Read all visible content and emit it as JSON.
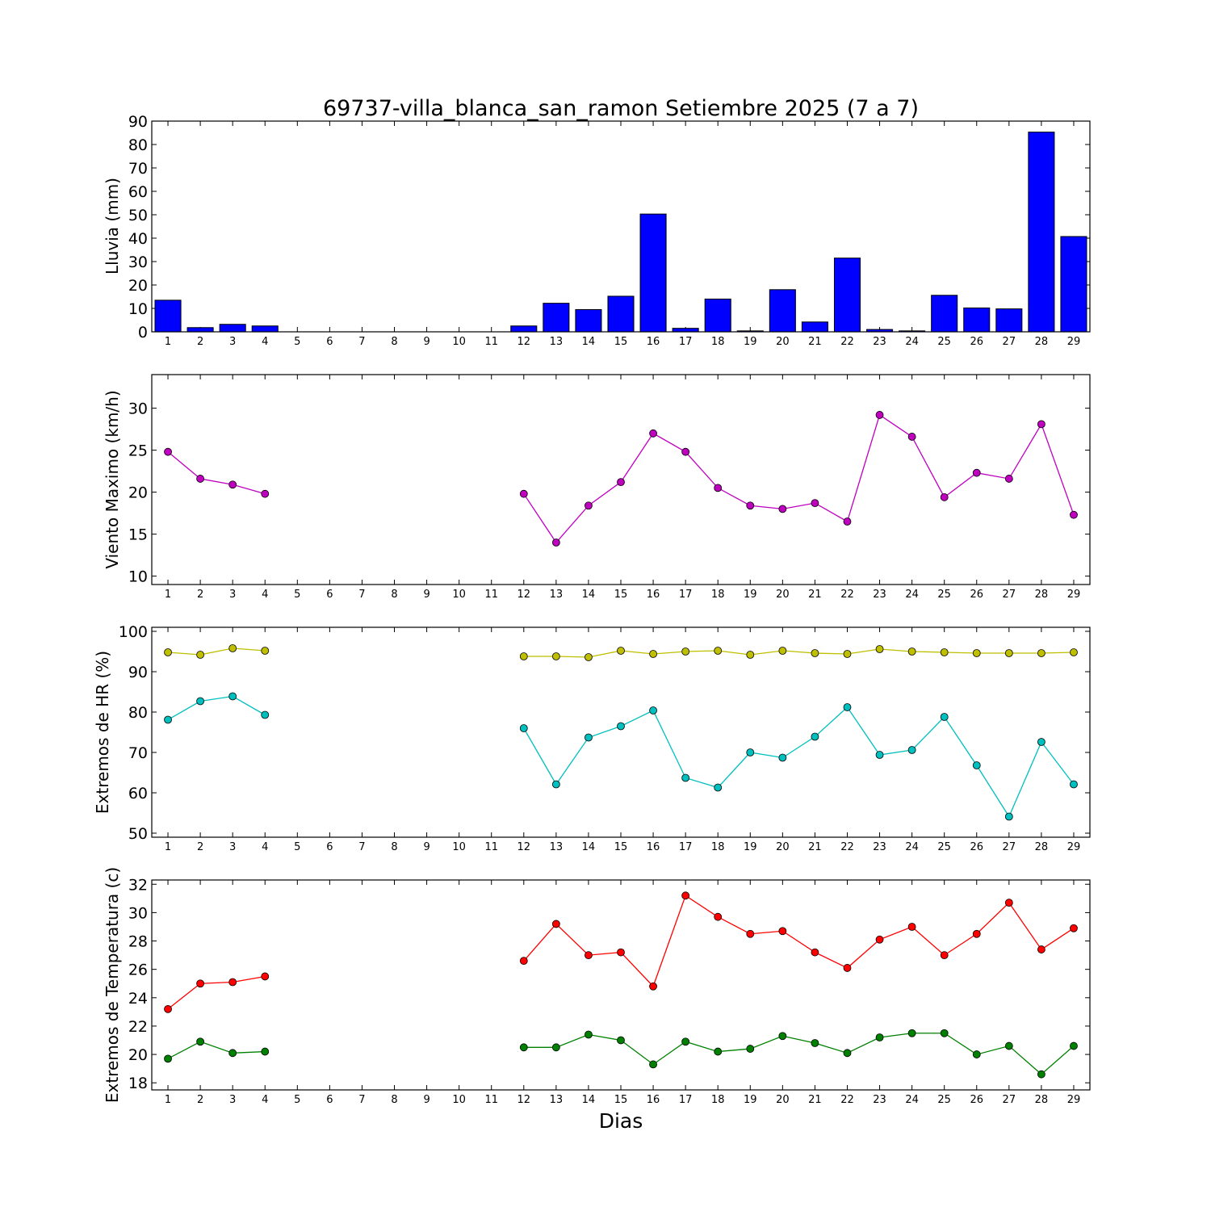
{
  "chart_data": [
    {
      "type": "bar",
      "title": "69737-villa_blanca_san_ramon Setiembre 2025  (7 a 7)",
      "ylabel": "Lluvia (mm)",
      "xlabel": "",
      "categories": [
        "1",
        "2",
        "3",
        "4",
        "5",
        "6",
        "7",
        "8",
        "9",
        "10",
        "11",
        "12",
        "13",
        "14",
        "15",
        "16",
        "17",
        "18",
        "19",
        "20",
        "21",
        "22",
        "23",
        "24",
        "25",
        "26",
        "27",
        "28",
        "29"
      ],
      "values": [
        13.5,
        1.8,
        3.2,
        2.5,
        0,
        0,
        0,
        0,
        0,
        0,
        0,
        2.5,
        12.2,
        9.5,
        15.2,
        50.3,
        1.5,
        14.0,
        0.4,
        18.0,
        4.2,
        31.5,
        1.0,
        0.4,
        15.6,
        10.2,
        9.8,
        85.3,
        40.7
      ],
      "ylim": [
        0,
        90
      ],
      "yticks": [
        "0",
        "10",
        "20",
        "30",
        "40",
        "50",
        "60",
        "70",
        "80",
        "90"
      ],
      "colors": {
        "bar": "#0000ff"
      }
    },
    {
      "type": "line",
      "title": "",
      "ylabel": "Viento Maximo (km/h)",
      "xlabel": "",
      "x": [
        1,
        2,
        3,
        4,
        5,
        6,
        7,
        8,
        9,
        10,
        11,
        12,
        13,
        14,
        15,
        16,
        17,
        18,
        19,
        20,
        21,
        22,
        23,
        24,
        25,
        26,
        27,
        28,
        29
      ],
      "xticks": [
        "1",
        "2",
        "3",
        "4",
        "5",
        "6",
        "7",
        "8",
        "9",
        "10",
        "11",
        "12",
        "13",
        "14",
        "15",
        "16",
        "17",
        "18",
        "19",
        "20",
        "21",
        "22",
        "23",
        "24",
        "25",
        "26",
        "27",
        "28",
        "29"
      ],
      "series": [
        {
          "color": "#bf00bf",
          "values": [
            24.8,
            21.6,
            20.9,
            19.8,
            null,
            null,
            null,
            null,
            null,
            null,
            null,
            19.8,
            14.0,
            18.4,
            21.2,
            27.0,
            24.8,
            20.5,
            18.4,
            18.0,
            18.7,
            16.5,
            29.2,
            26.6,
            19.4,
            22.3,
            21.6,
            28.1,
            17.3
          ]
        }
      ],
      "ylim": [
        9,
        34
      ],
      "yticks": [
        "10",
        "15",
        "20",
        "25",
        "30"
      ]
    },
    {
      "type": "line",
      "title": "",
      "ylabel": "Extremos de HR (%)",
      "xlabel": "",
      "x": [
        1,
        2,
        3,
        4,
        5,
        6,
        7,
        8,
        9,
        10,
        11,
        12,
        13,
        14,
        15,
        16,
        17,
        18,
        19,
        20,
        21,
        22,
        23,
        24,
        25,
        26,
        27,
        28,
        29
      ],
      "xticks": [
        "1",
        "2",
        "3",
        "4",
        "5",
        "6",
        "7",
        "8",
        "9",
        "10",
        "11",
        "12",
        "13",
        "14",
        "15",
        "16",
        "17",
        "18",
        "19",
        "20",
        "21",
        "22",
        "23",
        "24",
        "25",
        "26",
        "27",
        "28",
        "29"
      ],
      "series": [
        {
          "color": "#bfbf00",
          "values": [
            94.8,
            94.2,
            95.8,
            95.2,
            null,
            null,
            null,
            null,
            null,
            null,
            null,
            93.8,
            93.8,
            93.6,
            95.2,
            94.4,
            95.0,
            95.2,
            94.2,
            95.2,
            94.6,
            94.4,
            95.6,
            95.0,
            94.8,
            94.6,
            94.6,
            94.6,
            94.8
          ]
        },
        {
          "color": "#00bfbf",
          "values": [
            78.1,
            82.7,
            83.9,
            79.3,
            null,
            null,
            null,
            null,
            null,
            null,
            null,
            76.0,
            62.1,
            73.7,
            76.5,
            80.4,
            63.7,
            61.3,
            70.0,
            68.7,
            73.9,
            81.2,
            69.4,
            70.6,
            78.8,
            66.8,
            54.1,
            72.6,
            62.1
          ]
        }
      ],
      "ylim": [
        49,
        101
      ],
      "yticks": [
        "50",
        "60",
        "70",
        "80",
        "90",
        "100"
      ]
    },
    {
      "type": "line",
      "title": "",
      "ylabel": "Extremos de Temperatura (c)",
      "xlabel": "Dias",
      "x": [
        1,
        2,
        3,
        4,
        5,
        6,
        7,
        8,
        9,
        10,
        11,
        12,
        13,
        14,
        15,
        16,
        17,
        18,
        19,
        20,
        21,
        22,
        23,
        24,
        25,
        26,
        27,
        28,
        29
      ],
      "xticks": [
        "1",
        "2",
        "3",
        "4",
        "5",
        "6",
        "7",
        "8",
        "9",
        "10",
        "11",
        "12",
        "13",
        "14",
        "15",
        "16",
        "17",
        "18",
        "19",
        "20",
        "21",
        "22",
        "23",
        "24",
        "25",
        "26",
        "27",
        "28",
        "29"
      ],
      "series": [
        {
          "color": "#ff0000",
          "values": [
            23.2,
            25.0,
            25.1,
            25.5,
            null,
            null,
            null,
            null,
            null,
            null,
            null,
            26.6,
            29.2,
            27.0,
            27.2,
            24.8,
            31.2,
            29.7,
            28.5,
            28.7,
            27.2,
            26.1,
            28.1,
            29.0,
            27.0,
            28.5,
            30.7,
            27.4,
            28.9
          ]
        },
        {
          "color": "#008000",
          "values": [
            19.7,
            20.9,
            20.1,
            20.2,
            null,
            null,
            null,
            null,
            null,
            null,
            null,
            20.5,
            20.5,
            21.4,
            21.0,
            19.3,
            20.9,
            20.2,
            20.4,
            21.3,
            20.8,
            20.1,
            21.2,
            21.5,
            21.5,
            20.0,
            20.6,
            18.6,
            20.6
          ]
        }
      ],
      "ylim": [
        17.5,
        32.3
      ],
      "yticks": [
        "18",
        "20",
        "22",
        "24",
        "26",
        "28",
        "30",
        "32"
      ]
    }
  ]
}
